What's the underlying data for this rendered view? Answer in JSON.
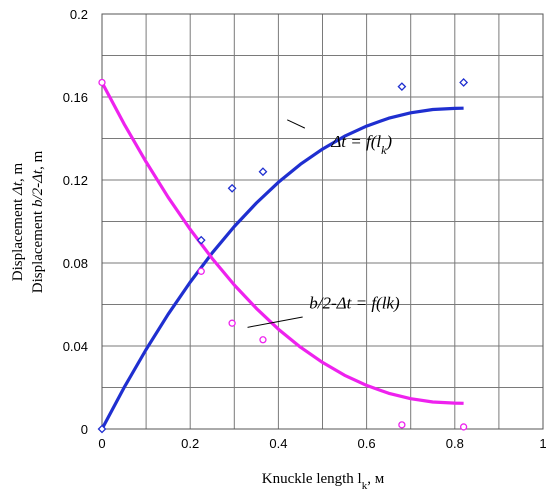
{
  "chart_data": {
    "type": "scatter",
    "xlabel": {
      "main": "Knuckle length l",
      "sub": "k",
      "suffix": ", м"
    },
    "ylabel": {
      "line1": {
        "pre": "Displacement ",
        "ital": "Δt",
        "post": ", m"
      },
      "line2": {
        "pre": "Displacement ",
        "ital": "b/2-Δt",
        "post": ", m"
      }
    },
    "xlim": [
      0,
      1
    ],
    "ylim": [
      0,
      0.2
    ],
    "xticks": [
      "0",
      "0.2",
      "0.4",
      "0.6",
      "0.8",
      "1"
    ],
    "yticks": [
      "0",
      "0.04",
      "0.08",
      "0.12",
      "0.16",
      "0.2"
    ],
    "grid": true,
    "series": [
      {
        "color": "#1f2fd0",
        "marker": "diamond",
        "points": [
          {
            "x": 0.0,
            "y": 0.0
          },
          {
            "x": 0.225,
            "y": 0.091
          },
          {
            "x": 0.295,
            "y": 0.116
          },
          {
            "x": 0.365,
            "y": 0.124
          },
          {
            "x": 0.68,
            "y": 0.165
          },
          {
            "x": 0.82,
            "y": 0.167
          }
        ],
        "curve": [
          {
            "x": 0.0,
            "y": 0.0
          },
          {
            "x": 0.05,
            "y": 0.0199
          },
          {
            "x": 0.1,
            "y": 0.0383
          },
          {
            "x": 0.15,
            "y": 0.0553
          },
          {
            "x": 0.2,
            "y": 0.0708
          },
          {
            "x": 0.25,
            "y": 0.0849
          },
          {
            "x": 0.3,
            "y": 0.0976
          },
          {
            "x": 0.35,
            "y": 0.1089
          },
          {
            "x": 0.4,
            "y": 0.1189
          },
          {
            "x": 0.45,
            "y": 0.1276
          },
          {
            "x": 0.5,
            "y": 0.1349
          },
          {
            "x": 0.55,
            "y": 0.1411
          },
          {
            "x": 0.6,
            "y": 0.146
          },
          {
            "x": 0.65,
            "y": 0.1498
          },
          {
            "x": 0.7,
            "y": 0.1524
          },
          {
            "x": 0.75,
            "y": 0.154
          },
          {
            "x": 0.8,
            "y": 0.1545
          },
          {
            "x": 0.82,
            "y": 0.1546
          }
        ],
        "annotation": {
          "pre": "Δt = f(l",
          "sub": "k",
          "post": ")",
          "x": 0.52,
          "y": 0.136,
          "lx1": 0.46,
          "ly1": 0.145,
          "lx2": 0.42,
          "ly2": 0.149
        }
      },
      {
        "color": "#ee22ee",
        "marker": "circle",
        "points": [
          {
            "x": 0.0,
            "y": 0.167
          },
          {
            "x": 0.225,
            "y": 0.076
          },
          {
            "x": 0.295,
            "y": 0.051
          },
          {
            "x": 0.365,
            "y": 0.043
          },
          {
            "x": 0.68,
            "y": 0.002
          },
          {
            "x": 0.82,
            "y": 0.001
          }
        ],
        "curve": [
          {
            "x": 0.0,
            "y": 0.167
          },
          {
            "x": 0.05,
            "y": 0.1471
          },
          {
            "x": 0.1,
            "y": 0.1287
          },
          {
            "x": 0.15,
            "y": 0.1117
          },
          {
            "x": 0.2,
            "y": 0.0962
          },
          {
            "x": 0.25,
            "y": 0.0821
          },
          {
            "x": 0.3,
            "y": 0.0694
          },
          {
            "x": 0.35,
            "y": 0.0581
          },
          {
            "x": 0.4,
            "y": 0.0481
          },
          {
            "x": 0.45,
            "y": 0.0394
          },
          {
            "x": 0.5,
            "y": 0.0321
          },
          {
            "x": 0.55,
            "y": 0.0259
          },
          {
            "x": 0.6,
            "y": 0.021
          },
          {
            "x": 0.65,
            "y": 0.0172
          },
          {
            "x": 0.7,
            "y": 0.0146
          },
          {
            "x": 0.75,
            "y": 0.013
          },
          {
            "x": 0.8,
            "y": 0.0125
          },
          {
            "x": 0.82,
            "y": 0.0124
          }
        ],
        "annotation": {
          "text": "b/2-Δt = f(lk)",
          "x": 0.47,
          "y": 0.058,
          "lx1": 0.455,
          "ly1": 0.054,
          "lx2": 0.33,
          "ly2": 0.049
        }
      }
    ]
  }
}
